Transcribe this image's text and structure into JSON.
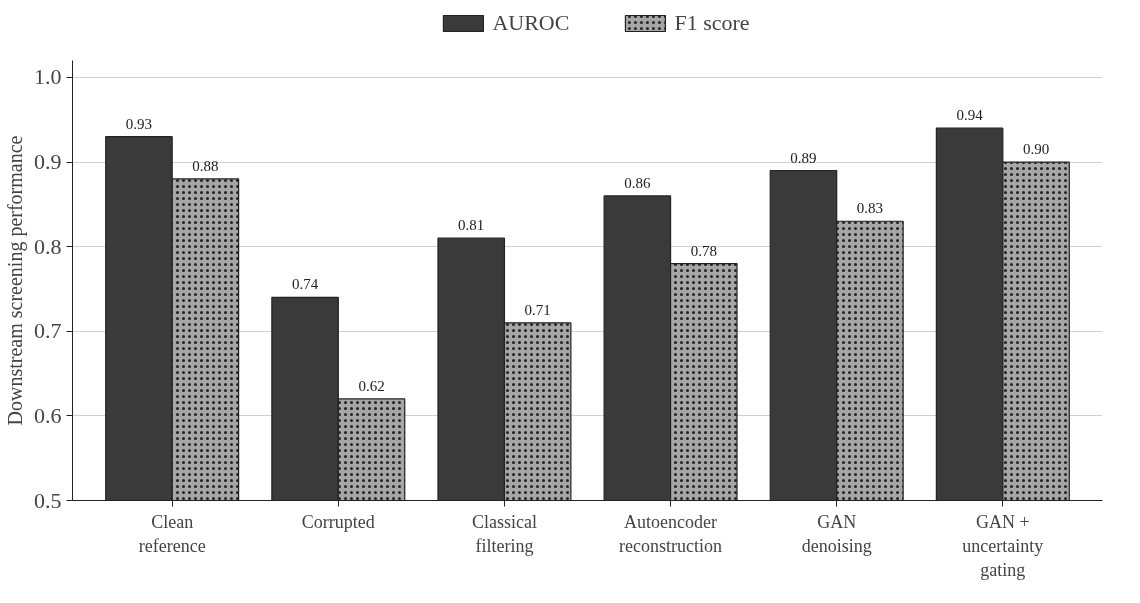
{
  "chart_data": {
    "type": "bar",
    "ylabel": "Downstream screening performance",
    "categories": [
      "Clean\nreference",
      "Corrupted",
      "Classical\nfiltering",
      "Autoencoder\nreconstruction",
      "GAN\ndenoising",
      "GAN +\nuncertainty\ngating"
    ],
    "series": [
      {
        "name": "AUROC",
        "color": "#3a3a3a",
        "values": [
          0.93,
          0.74,
          0.81,
          0.86,
          0.89,
          0.94
        ],
        "value_labels": [
          "0.93",
          "0.74",
          "0.81",
          "0.86",
          "0.89",
          "0.94"
        ]
      },
      {
        "name": "F1 score",
        "color": "#a6a6a6",
        "values": [
          0.88,
          0.62,
          0.71,
          0.78,
          0.83,
          0.9
        ],
        "value_labels": [
          "0.88",
          "0.62",
          "0.71",
          "0.78",
          "0.83",
          "0.90"
        ]
      }
    ],
    "ylim": [
      0.5,
      1.02
    ],
    "yticks": [
      0.5,
      0.6,
      0.7,
      0.8,
      0.9,
      {
        "value": 1.0,
        "label": "1.0"
      }
    ],
    "grid": "y",
    "legend": "top"
  }
}
